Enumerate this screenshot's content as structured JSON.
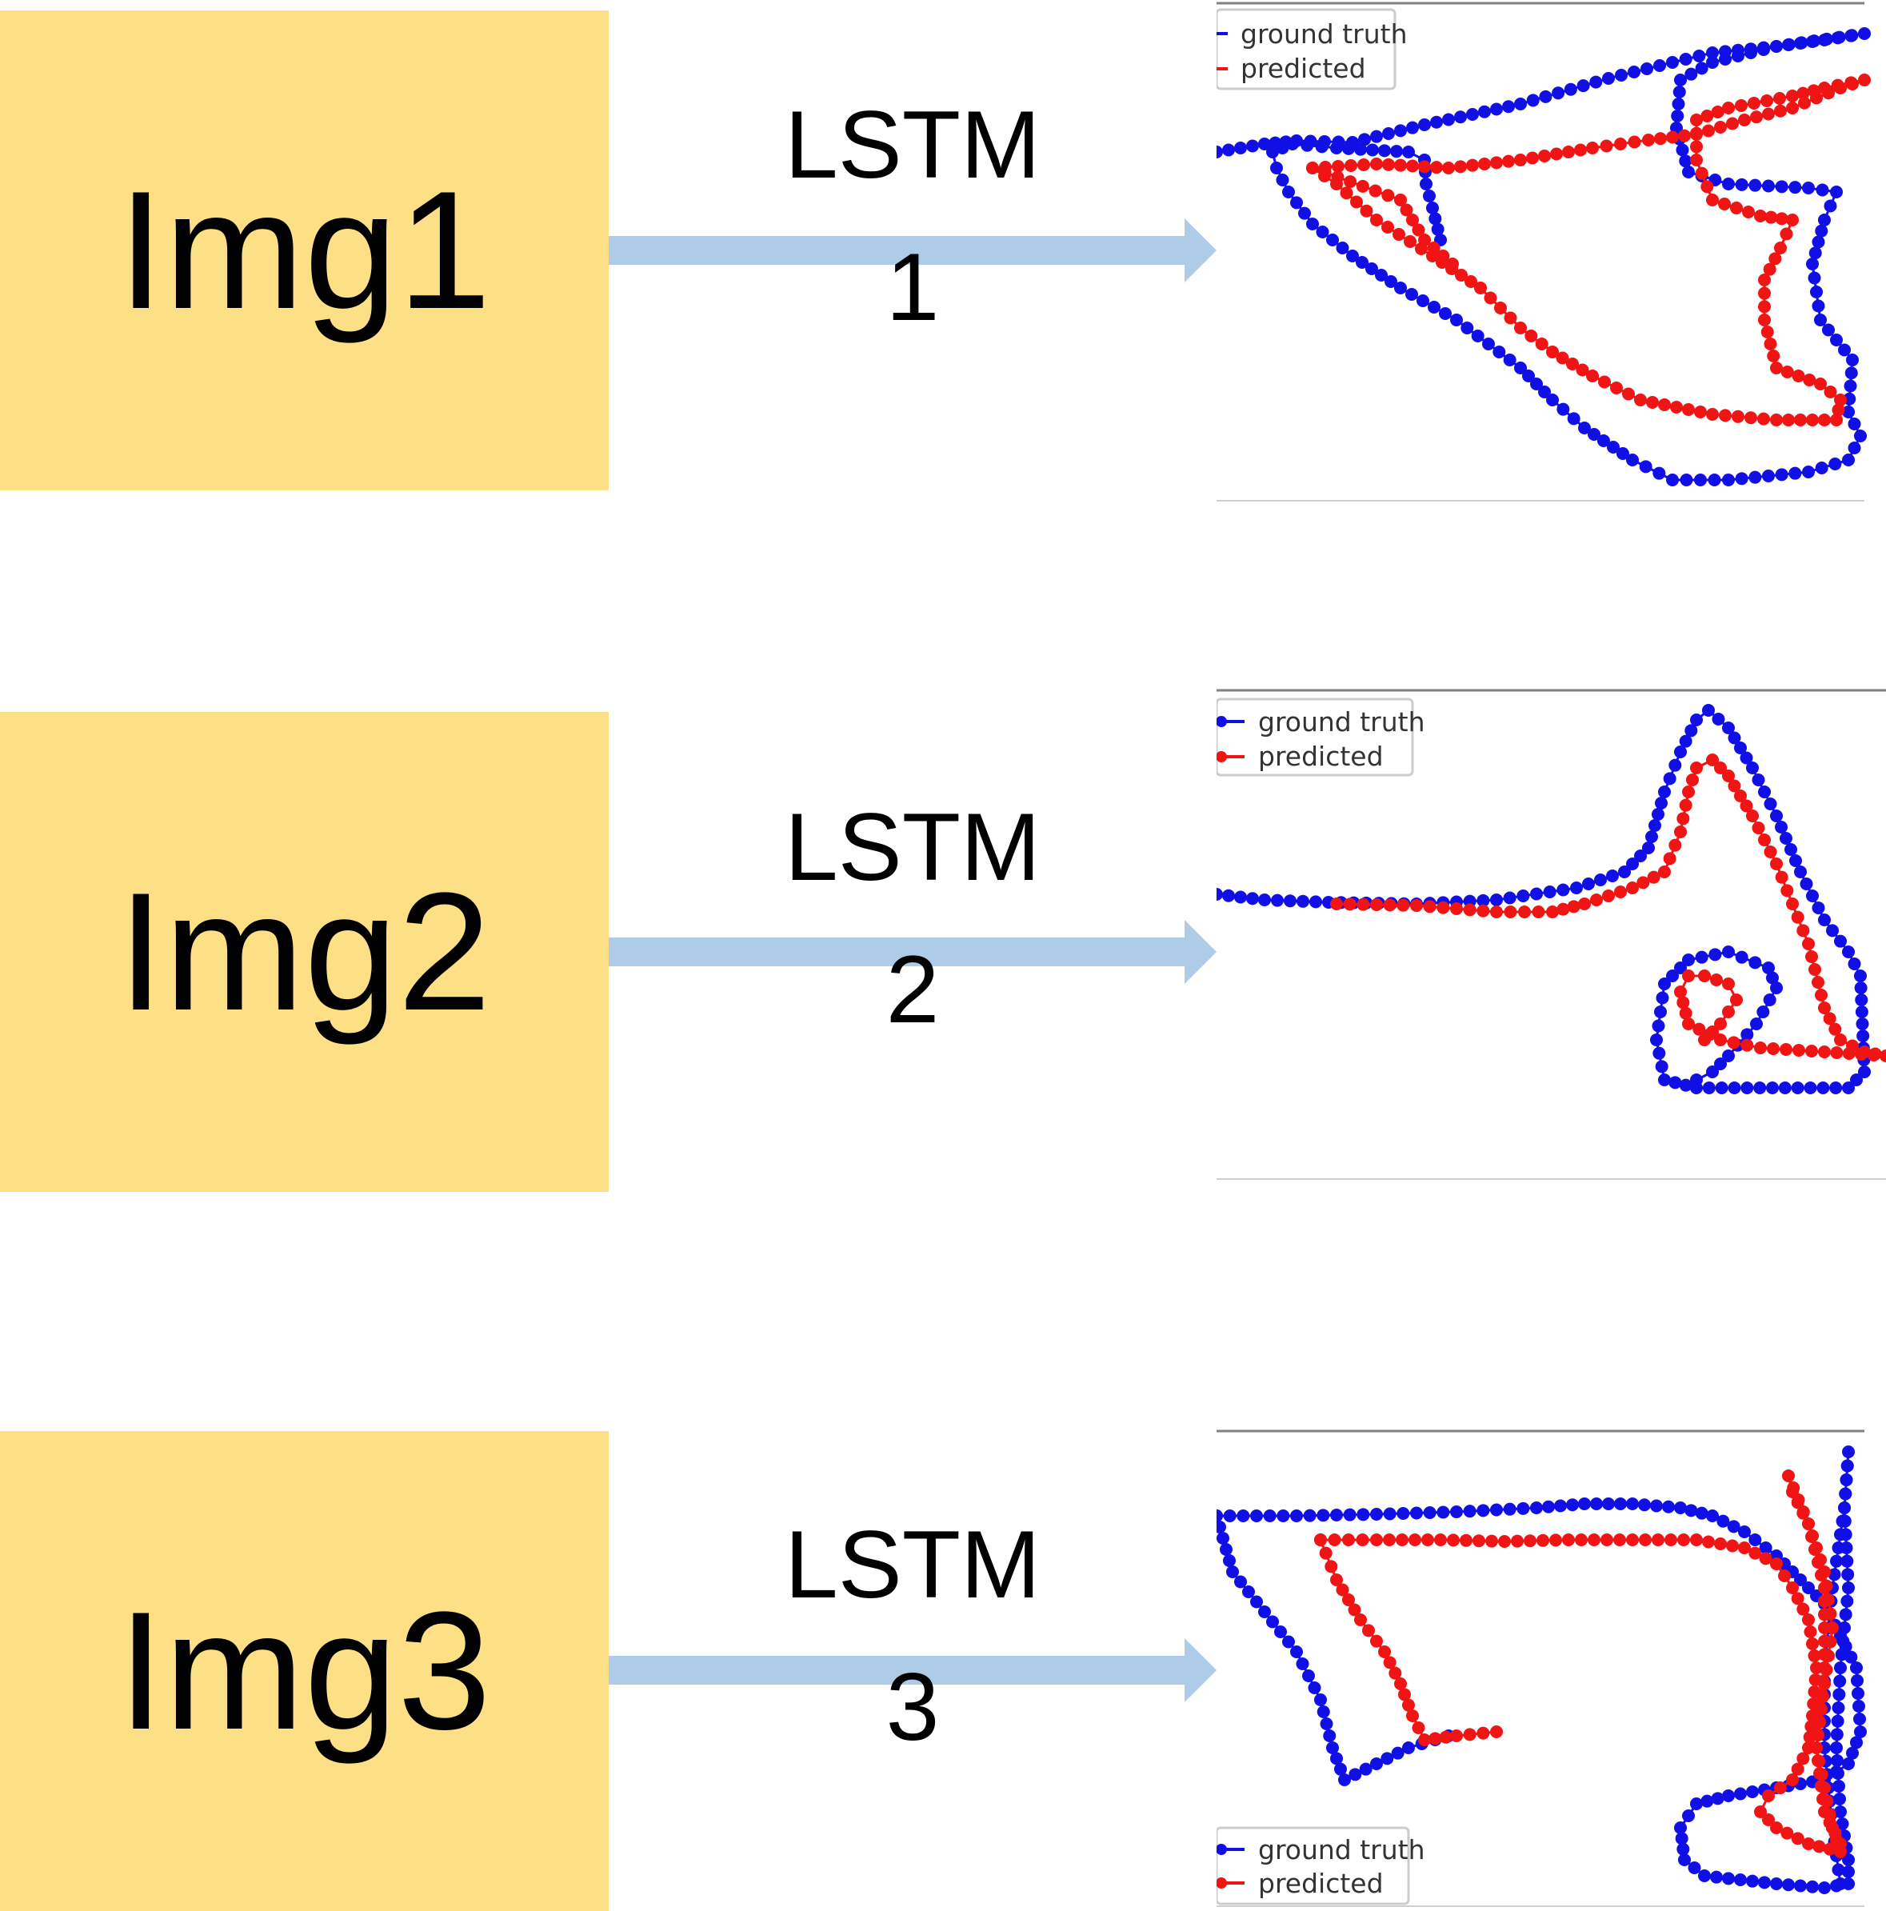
{
  "rows": [
    {
      "image_label": "Img1",
      "model_label_line1": "LSTM",
      "model_label_line2": "1",
      "legend": [
        "ground truth",
        "predicted"
      ]
    },
    {
      "image_label": "Img2",
      "model_label_line1": "LSTM",
      "model_label_line2": "2",
      "legend": [
        "ground truth",
        "predicted"
      ]
    },
    {
      "image_label": "Img3",
      "model_label_line1": "LSTM",
      "model_label_line2": "3",
      "legend": [
        "ground truth",
        "predicted"
      ]
    }
  ],
  "colors": {
    "image_box": "#fde085",
    "arrow": "#aecbe8",
    "ground_truth": "#1010e6",
    "predicted": "#f01414"
  }
}
